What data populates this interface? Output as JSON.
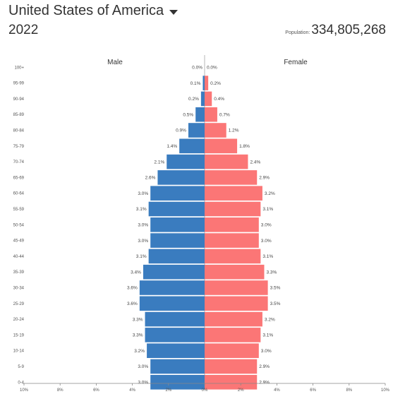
{
  "header": {
    "country": "United States of America",
    "year": "2022",
    "population_label": "Population:",
    "population_value": "334,805,268"
  },
  "colors": {
    "male": "#3a7cbf",
    "female": "#fb7676"
  },
  "chart_data": {
    "type": "bar",
    "orientation": "horizontal-pyramid",
    "left_label": "Male",
    "right_label": "Female",
    "categories": [
      "100+",
      "95-99",
      "90-94",
      "85-89",
      "80-84",
      "75-79",
      "70-74",
      "65-69",
      "60-64",
      "55-59",
      "50-54",
      "45-49",
      "40-44",
      "35-39",
      "30-34",
      "25-29",
      "20-24",
      "15-19",
      "10-14",
      "5-9",
      "0-4"
    ],
    "series": [
      {
        "name": "Male",
        "values": [
          0.0,
          0.1,
          0.2,
          0.5,
          0.9,
          1.4,
          2.1,
          2.6,
          3.0,
          3.1,
          3.0,
          3.0,
          3.1,
          3.4,
          3.6,
          3.6,
          3.3,
          3.3,
          3.2,
          3.0,
          3.0
        ],
        "labels": [
          "0.0%",
          "0.1%",
          "0.2%",
          "0.5%",
          "0.9%",
          "1.4%",
          "2.1%",
          "2.6%",
          "3.0%",
          "3.1%",
          "3.0%",
          "3.0%",
          "3.1%",
          "3.4%",
          "3.6%",
          "3.6%",
          "3.3%",
          "3.3%",
          "3.2%",
          "3.0%",
          "3.0%"
        ]
      },
      {
        "name": "Female",
        "values": [
          0.0,
          0.2,
          0.4,
          0.7,
          1.2,
          1.8,
          2.4,
          2.9,
          3.2,
          3.1,
          3.0,
          3.0,
          3.1,
          3.3,
          3.5,
          3.5,
          3.2,
          3.1,
          3.0,
          2.9,
          2.9
        ],
        "labels": [
          "0.0%",
          "0.2%",
          "0.4%",
          "0.7%",
          "1.2%",
          "1.8%",
          "2.4%",
          "2.9%",
          "3.2%",
          "3.1%",
          "3.0%",
          "3.0%",
          "3.1%",
          "3.3%",
          "3.5%",
          "3.5%",
          "3.2%",
          "3.1%",
          "3.0%",
          "2.9%",
          "2.9%"
        ]
      }
    ],
    "x_ticks": [
      -10,
      -8,
      -6,
      -4,
      -2,
      0,
      2,
      4,
      6,
      8,
      10
    ],
    "x_tick_labels": [
      "10%",
      "8%",
      "6%",
      "4%",
      "2%",
      "0%",
      "2%",
      "4%",
      "6%",
      "8%",
      "10%"
    ],
    "xlim": [
      -10,
      10
    ]
  }
}
